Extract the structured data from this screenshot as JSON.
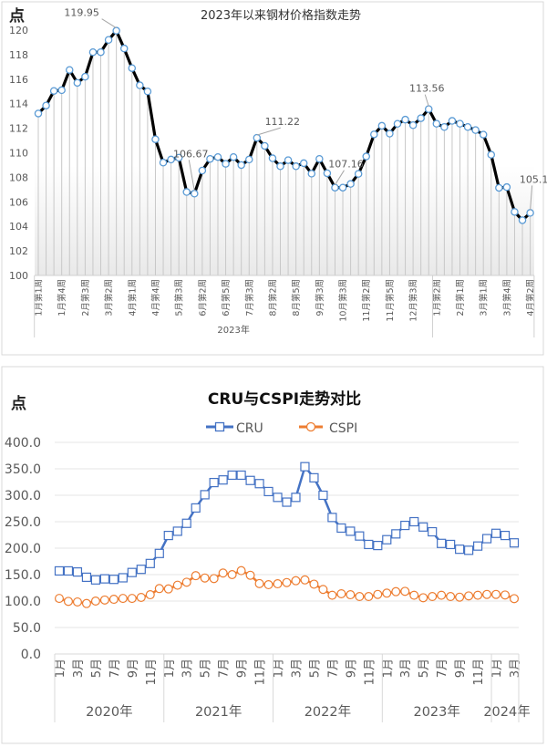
{
  "chart_data": [
    {
      "type": "line",
      "title": "2023年以来钢材价格指数走势",
      "ylabel": "点",
      "ylim": [
        100,
        120
      ],
      "yticks": [
        100,
        102,
        104,
        106,
        108,
        110,
        112,
        114,
        116,
        118,
        120
      ],
      "grid": false,
      "drop_lines": true,
      "tick_labels": [
        "1月第1周",
        "1月第4周",
        "2月第3周",
        "3月第2周",
        "4月第1周",
        "4月第4周",
        "5月第3周",
        "6月第2周",
        "6月第5周",
        "7月第3周",
        "8月第2周",
        "8月第5周",
        "9月第3周",
        "10月第3周",
        "11月第2周",
        "11月第5周",
        "12月第3周",
        "1月第2周",
        "2月第1周",
        "3月第1周",
        "3月第4周",
        "4月第2周"
      ],
      "tick_every": 3,
      "groups": [
        {
          "label": "2023年",
          "count": 51
        },
        {
          "label": "",
          "count": 13
        }
      ],
      "series": [
        {
          "color": "#000000",
          "marker_color": "#5B9BD5",
          "values": [
            113.2,
            113.85,
            115.04,
            115.1,
            116.75,
            115.7,
            116.2,
            118.2,
            118.2,
            119.2,
            119.95,
            118.5,
            116.9,
            115.5,
            115.0,
            111.1,
            109.2,
            109.45,
            109.6,
            106.8,
            106.67,
            108.55,
            109.5,
            109.65,
            109.1,
            109.65,
            109.0,
            109.45,
            111.22,
            110.56,
            109.55,
            108.9,
            109.4,
            108.9,
            109.15,
            108.3,
            109.5,
            108.33,
            107.16,
            107.16,
            107.46,
            108.28,
            109.7,
            111.5,
            112.2,
            111.56,
            112.36,
            112.7,
            112.25,
            112.82,
            113.56,
            112.37,
            112.1,
            112.6,
            112.37,
            112.1,
            111.85,
            111.48,
            109.84,
            107.14,
            107.2,
            105.18,
            104.5,
            105.1
          ]
        }
      ],
      "annotations": [
        {
          "index": 10,
          "text": "119.95"
        },
        {
          "index": 20,
          "text": "106.67"
        },
        {
          "index": 28,
          "text": "111.22"
        },
        {
          "index": 38,
          "text": "107.16"
        },
        {
          "index": 50,
          "text": "113.56"
        },
        {
          "index": 63,
          "text": "105.1"
        }
      ]
    },
    {
      "type": "line",
      "title": "CRU与CSPI走势对比",
      "ylabel": "点",
      "ylim": [
        0,
        400
      ],
      "yticks": [
        "0.0",
        "50.0",
        "100.0",
        "150.0",
        "200.0",
        "250.0",
        "300.0",
        "350.0",
        "400.0"
      ],
      "grid": true,
      "legend": "top",
      "month_labels": [
        "1月",
        "3月",
        "5月",
        "7月",
        "9月",
        "11月"
      ],
      "groups": [
        {
          "label": "2020年",
          "count": 12
        },
        {
          "label": "2021年",
          "count": 12
        },
        {
          "label": "2022年",
          "count": 12
        },
        {
          "label": "2023年",
          "count": 12
        },
        {
          "label": "2024年",
          "count": 3
        }
      ],
      "series": [
        {
          "name": "CRU",
          "color": "#4472C4",
          "marker": "square",
          "values": [
            157,
            157,
            155,
            145,
            140,
            142,
            141,
            144,
            154,
            160,
            171,
            190,
            224,
            232,
            247,
            276,
            301,
            324,
            329,
            338,
            338,
            328,
            322,
            307,
            296,
            287,
            296,
            354,
            333,
            300,
            258,
            238,
            232,
            223,
            207,
            205,
            216,
            227,
            243,
            250,
            240,
            231,
            209,
            207,
            198,
            196,
            204,
            218,
            228,
            224,
            210
          ]
        },
        {
          "name": "CSPI",
          "color": "#ED7D31",
          "marker": "circle",
          "values": [
            105,
            99.4,
            98.3,
            95.4,
            100,
            102,
            103.4,
            105,
            105,
            106.9,
            112,
            123.6,
            123,
            130,
            135.6,
            148,
            143.6,
            142.5,
            153,
            150,
            157.5,
            148.8,
            133,
            131,
            132.7,
            135,
            138.5,
            140,
            132,
            122,
            111,
            113.8,
            112,
            108.6,
            108.6,
            112.6,
            115,
            117.8,
            118.4,
            111,
            106.3,
            108.6,
            111,
            108.6,
            107.4,
            109.8,
            111,
            112.6,
            112.6,
            111.5,
            104.6
          ]
        }
      ]
    }
  ]
}
